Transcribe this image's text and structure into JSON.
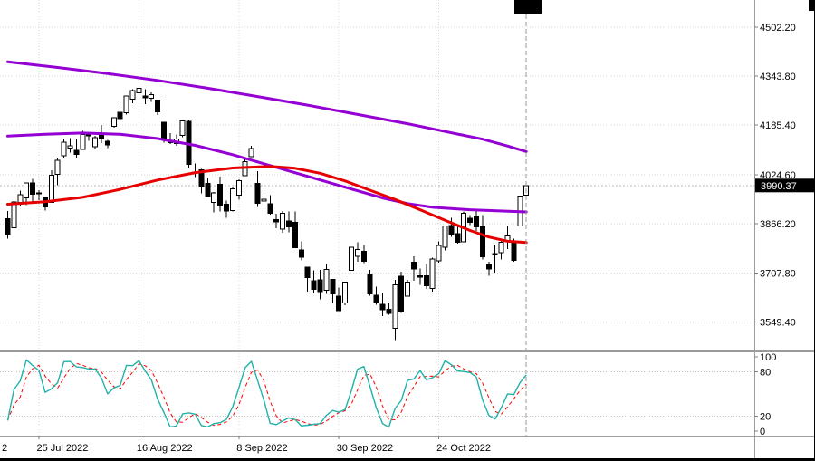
{
  "colors": {
    "background": "#ffffff",
    "candle_up_fill": "#ffffff",
    "candle_down_fill": "#000000",
    "candle_outline": "#000000",
    "ma_slow": "#9400D3",
    "ma_medium": "#9400D3",
    "ma_fast": "#E60000",
    "stoch_main": "#20B2AA",
    "stoch_signal": "#FF0000",
    "badge_bg": "#000000",
    "badge_text": "#ffffff",
    "grid": "#d8d8d8"
  },
  "price_axis": {
    "tick_labels": [
      "4502.20",
      "4343.80",
      "4185.40",
      "4024.60",
      "3866.20",
      "3707.80",
      "3549.40"
    ],
    "current_price_label": "3990.37"
  },
  "time_axis": {
    "labels": [
      {
        "text": "2",
        "x": 2
      },
      {
        "text": "25 Jul 2022",
        "bar": 5
      },
      {
        "text": "16 Aug 2022",
        "bar": 21
      },
      {
        "text": "8 Sep 2022",
        "bar": 37
      },
      {
        "text": "30 Sep 2022",
        "bar": 53
      },
      {
        "text": "24 Oct 2022",
        "bar": 69
      }
    ]
  },
  "indicator_axis": {
    "tick_labels": [
      "100",
      "80",
      "20",
      "0"
    ],
    "level_values": [
      80,
      20
    ]
  },
  "chart_data": [
    {
      "type": "candlestick",
      "title": "",
      "current_price": 3990.37,
      "y_ticks": [
        4502.2,
        4343.8,
        4185.4,
        4024.6,
        3866.2,
        3707.8,
        3549.4
      ],
      "x_tick_labels": [
        "25 Jul 2022",
        "16 Aug 2022",
        "8 Sep 2022",
        "30 Sep 2022",
        "24 Oct 2022"
      ],
      "candles_ohlc": [
        [
          3883,
          3908,
          3818,
          3831
        ],
        [
          3854,
          3940,
          3854,
          3937
        ],
        [
          3936,
          3974,
          3922,
          3960
        ],
        [
          3950,
          4000,
          3927,
          3999
        ],
        [
          3998,
          4012,
          3938,
          3962
        ],
        [
          3965,
          3975,
          3943,
          3967
        ],
        [
          3953,
          3953,
          3910,
          3921
        ],
        [
          3936,
          4039,
          3936,
          4024
        ],
        [
          4026,
          4078,
          3992,
          4072
        ],
        [
          4087,
          4140,
          4079,
          4130
        ],
        [
          4112,
          4144,
          4096,
          4119
        ],
        [
          4104,
          4140,
          4080,
          4091
        ],
        [
          4107,
          4167,
          4107,
          4155
        ],
        [
          4154,
          4161,
          4135,
          4152
        ],
        [
          4116,
          4151,
          4107,
          4145
        ],
        [
          4155,
          4186,
          4128,
          4140
        ],
        [
          4133,
          4137,
          4112,
          4122
        ],
        [
          4181,
          4211,
          4177,
          4210
        ],
        [
          4227,
          4257,
          4201,
          4207
        ],
        [
          4225,
          4280,
          4219,
          4280
        ],
        [
          4269,
          4301,
          4256,
          4297
        ],
        [
          4290,
          4325,
          4277,
          4305
        ],
        [
          4280,
          4302,
          4253,
          4274
        ],
        [
          4273,
          4292,
          4261,
          4284
        ],
        [
          4266,
          4266,
          4218,
          4228
        ],
        [
          4195,
          4195,
          4129,
          4138
        ],
        [
          4133,
          4159,
          4124,
          4129
        ],
        [
          4126,
          4156,
          4119,
          4141
        ],
        [
          4153,
          4200,
          4147,
          4199
        ],
        [
          4198,
          4203,
          4048,
          4058
        ],
        [
          4034,
          4062,
          4017,
          4031
        ],
        [
          4041,
          4044,
          3965,
          3986
        ],
        [
          3997,
          4015,
          3954,
          3955
        ],
        [
          3936,
          3970,
          3904,
          3967
        ],
        [
          3994,
          4019,
          3906,
          3924
        ],
        [
          3930,
          3942,
          3886,
          3908
        ],
        [
          3909,
          3987,
          3906,
          3980
        ],
        [
          3959,
          4010,
          3944,
          4006
        ],
        [
          4022,
          4076,
          4022,
          4067
        ],
        [
          4083,
          4119,
          4083,
          4110
        ],
        [
          3997,
          4037,
          3921,
          3933
        ],
        [
          3940,
          3961,
          3912,
          3946
        ],
        [
          3932,
          3959,
          3896,
          3901
        ],
        [
          3880,
          3899,
          3853,
          3873
        ],
        [
          3849,
          3908,
          3838,
          3900
        ],
        [
          3875,
          3907,
          3839,
          3856
        ],
        [
          3871,
          3907,
          3789,
          3790
        ],
        [
          3782,
          3810,
          3749,
          3758
        ],
        [
          3727,
          3727,
          3647,
          3693
        ],
        [
          3682,
          3716,
          3644,
          3655
        ],
        [
          3686,
          3717,
          3623,
          3647
        ],
        [
          3651,
          3736,
          3640,
          3719
        ],
        [
          3687,
          3687,
          3610,
          3640
        ],
        [
          3633,
          3661,
          3584,
          3586
        ],
        [
          3610,
          3679,
          3604,
          3678
        ],
        [
          3716,
          3792,
          3716,
          3791
        ],
        [
          3761,
          3807,
          3744,
          3783
        ],
        [
          3778,
          3798,
          3739,
          3745
        ],
        [
          3701,
          3718,
          3634,
          3640
        ],
        [
          3635,
          3663,
          3605,
          3612
        ],
        [
          3607,
          3641,
          3568,
          3589
        ],
        [
          3591,
          3610,
          3572,
          3577
        ],
        [
          3529,
          3685,
          3491,
          3670
        ],
        [
          3697,
          3712,
          3579,
          3583
        ],
        [
          3632,
          3686,
          3632,
          3678
        ],
        [
          3742,
          3762,
          3682,
          3720
        ],
        [
          3699,
          3722,
          3669,
          3695
        ],
        [
          3699,
          3736,
          3656,
          3666
        ],
        [
          3657,
          3757,
          3647,
          3753
        ],
        [
          3747,
          3810,
          3741,
          3797
        ],
        [
          3791,
          3860,
          3781,
          3859
        ],
        [
          3861,
          3886,
          3824,
          3831
        ],
        [
          3834,
          3859,
          3803,
          3807
        ],
        [
          3808,
          3906,
          3808,
          3901
        ],
        [
          3884,
          3894,
          3863,
          3872
        ],
        [
          3890,
          3912,
          3844,
          3856
        ],
        [
          3857,
          3895,
          3752,
          3760
        ],
        [
          3735,
          3744,
          3699,
          3720
        ],
        [
          3767,
          3797,
          3709,
          3771
        ],
        [
          3774,
          3810,
          3751,
          3807
        ],
        [
          3810,
          3860,
          3785,
          3828
        ],
        [
          3811,
          3818,
          3744,
          3749
        ],
        [
          3860,
          3958,
          3859,
          3956
        ],
        [
          3959,
          3998,
          3944,
          3990.37
        ]
      ],
      "overlays": [
        {
          "name": "ma-slow-purple",
          "color": "#9400D3",
          "width": 3,
          "points": [
            [
              0,
              4390
            ],
            [
              8,
              4372
            ],
            [
              16,
              4352
            ],
            [
              24,
              4330
            ],
            [
              32,
              4305
            ],
            [
              40,
              4278
            ],
            [
              48,
              4250
            ],
            [
              56,
              4220
            ],
            [
              64,
              4190
            ],
            [
              70,
              4165
            ],
            [
              76,
              4140
            ],
            [
              80,
              4118
            ],
            [
              83,
              4100
            ]
          ]
        },
        {
          "name": "ma-medium-purple",
          "color": "#9400D3",
          "width": 3,
          "points": [
            [
              0,
              4150
            ],
            [
              6,
              4156
            ],
            [
              12,
              4160
            ],
            [
              18,
              4156
            ],
            [
              24,
              4142
            ],
            [
              30,
              4120
            ],
            [
              36,
              4090
            ],
            [
              42,
              4055
            ],
            [
              48,
              4020
            ],
            [
              54,
              3985
            ],
            [
              60,
              3950
            ],
            [
              64,
              3932
            ],
            [
              68,
              3920
            ],
            [
              74,
              3912
            ],
            [
              83,
              3905
            ]
          ]
        },
        {
          "name": "ma-fast-red",
          "color": "#E60000",
          "width": 3,
          "points": [
            [
              0,
              3930
            ],
            [
              6,
              3938
            ],
            [
              12,
              3952
            ],
            [
              18,
              3978
            ],
            [
              24,
              4008
            ],
            [
              30,
              4032
            ],
            [
              36,
              4047
            ],
            [
              42,
              4052
            ],
            [
              46,
              4046
            ],
            [
              50,
              4030
            ],
            [
              54,
              4005
            ],
            [
              58,
              3975
            ],
            [
              62,
              3945
            ],
            [
              66,
              3912
            ],
            [
              70,
              3878
            ],
            [
              74,
              3845
            ],
            [
              77,
              3824
            ],
            [
              80,
              3810
            ],
            [
              83,
              3806
            ]
          ]
        }
      ]
    },
    {
      "type": "line",
      "name": "stochastic-oscillator",
      "params": {
        "k_period": 5,
        "slowing": 3,
        "signal_period": 3
      },
      "range": [
        0,
        100
      ],
      "levels": [
        80,
        20
      ],
      "main_color": "#20B2AA",
      "signal_color": "#FF0000",
      "derived_from": "candles_ohlc"
    }
  ]
}
